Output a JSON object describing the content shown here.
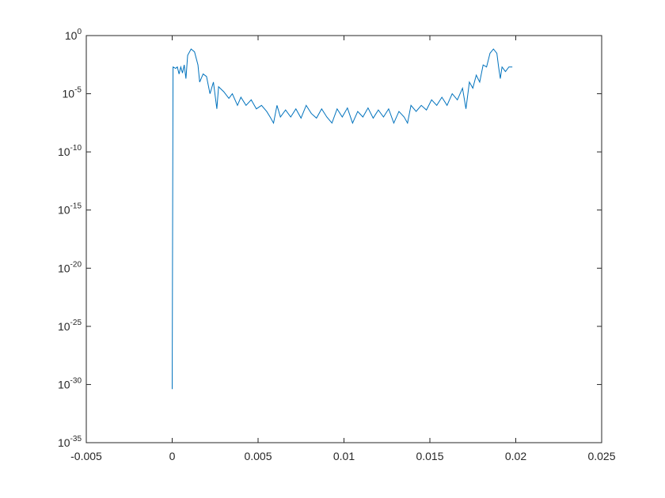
{
  "chart_data": {
    "type": "line",
    "log_y": true,
    "color": "#0072bd",
    "x": [
      0,
      5e-05,
      0.0002,
      0.0003,
      0.0004,
      0.0005,
      0.0006,
      0.0007,
      0.0008,
      0.0009,
      0.0011,
      0.0013,
      0.0015,
      0.0016,
      0.0018,
      0.002,
      0.0022,
      0.0024,
      0.0026,
      0.0027,
      0.003,
      0.0033,
      0.0035,
      0.0038,
      0.004,
      0.0043,
      0.0046,
      0.0049,
      0.0052,
      0.0055,
      0.0057,
      0.0059,
      0.0061,
      0.0063,
      0.0066,
      0.0069,
      0.0072,
      0.0075,
      0.0078,
      0.0081,
      0.0084,
      0.0087,
      0.009,
      0.0093,
      0.0096,
      0.0099,
      0.0102,
      0.0105,
      0.0108,
      0.0111,
      0.0114,
      0.0117,
      0.012,
      0.0123,
      0.0126,
      0.0129,
      0.0132,
      0.0135,
      0.0137,
      0.0139,
      0.0142,
      0.0145,
      0.0148,
      0.0151,
      0.0154,
      0.0157,
      0.016,
      0.0163,
      0.0166,
      0.0169,
      0.0171,
      0.0173,
      0.0175,
      0.0177,
      0.0179,
      0.0181,
      0.0183,
      0.0185,
      0.0187,
      0.0189,
      0.019,
      0.0191,
      0.0192,
      0.0194,
      0.0196,
      0.0198
    ],
    "values": [
      4e-31,
      0.002,
      0.0015,
      0.002,
      0.0005,
      0.002,
      0.0006,
      0.003,
      0.0002,
      0.02,
      0.07,
      0.04,
      0.003,
      0.0001,
      0.0005,
      0.0003,
      1e-05,
      0.0001,
      5e-07,
      4e-05,
      1.5e-05,
      4e-06,
      1e-05,
      1e-06,
      5e-06,
      1e-06,
      3e-06,
      5e-07,
      1e-06,
      3e-07,
      1e-07,
      3e-08,
      1e-06,
      1e-07,
      4e-07,
      1e-07,
      5e-07,
      8e-08,
      1e-06,
      2e-07,
      8e-08,
      5e-07,
      1e-07,
      3e-08,
      5e-07,
      1e-07,
      6e-07,
      3e-08,
      3e-07,
      1e-07,
      6e-07,
      8e-08,
      4e-07,
      1e-07,
      5e-07,
      3e-08,
      3e-07,
      1e-07,
      3e-08,
      1e-06,
      3e-07,
      1e-06,
      4e-07,
      3e-06,
      1e-06,
      5e-06,
      1e-06,
      1e-05,
      3e-06,
      3e-05,
      5e-07,
      0.0001,
      3e-05,
      0.0004,
      0.0001,
      0.003,
      0.002,
      0.03,
      0.07,
      0.03,
      0.002,
      0.0002,
      0.002,
      0.0008,
      0.002,
      0.002
    ],
    "xlim": [
      -0.005,
      0.025
    ],
    "xticks": [
      -0.005,
      0,
      0.005,
      0.01,
      0.015,
      0.02,
      0.025
    ],
    "ylim": [
      1e-35,
      1
    ],
    "yticks": [
      {
        "value": 1e-35,
        "label": "10^-35"
      },
      {
        "value": 1e-30,
        "label": "10^-30"
      },
      {
        "value": 1e-25,
        "label": "10^-25"
      },
      {
        "value": 1e-20,
        "label": "10^-20"
      },
      {
        "value": 1e-15,
        "label": "10^-15"
      },
      {
        "value": 1e-10,
        "label": "10^-10"
      },
      {
        "value": 1e-05,
        "label": "10^-5"
      },
      {
        "value": 1,
        "label": "10^0"
      }
    ]
  }
}
